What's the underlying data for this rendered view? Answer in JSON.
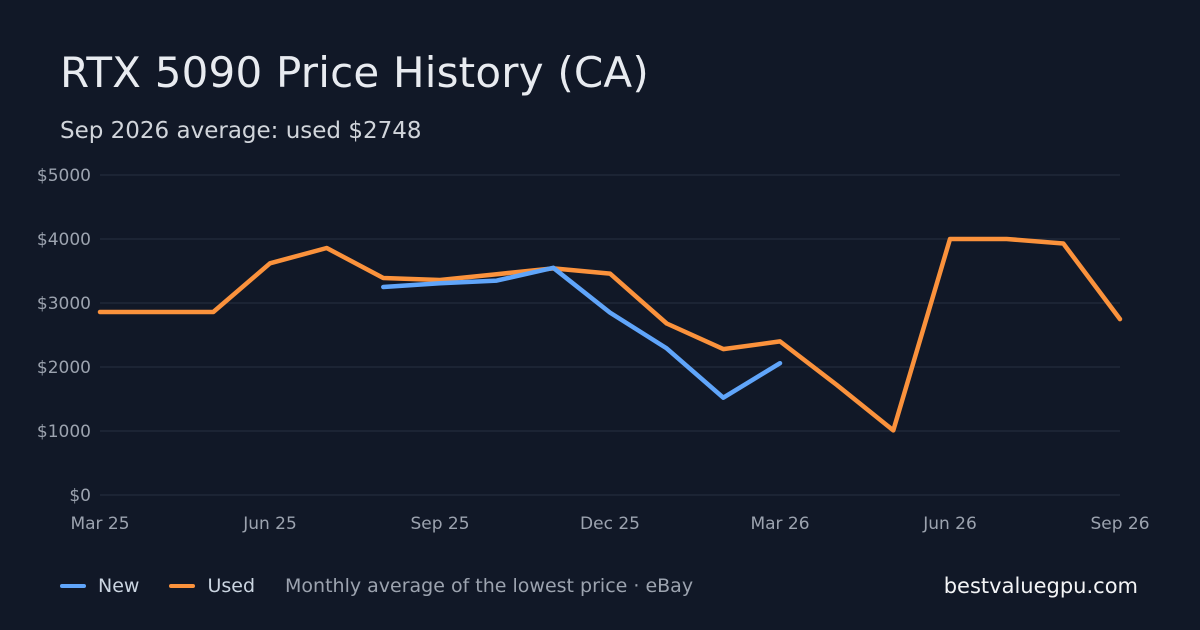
{
  "colors": {
    "background": "#111827",
    "grid": "#263042",
    "new": "#60a5fa",
    "used": "#fb923c",
    "axis_text": "#9ca3af"
  },
  "footer": {
    "note": "Monthly average of the lowest price · eBay",
    "brand": "bestvaluegpu.com"
  },
  "chart_data": {
    "type": "line",
    "title": "RTX 5090 Price History (CA)",
    "subtitle": "Sep 2026 average: used $2748",
    "xlabel": "",
    "ylabel": "",
    "x": [
      "Mar 25",
      "Apr 25",
      "May 25",
      "Jun 25",
      "Jul 25",
      "Aug 25",
      "Sep 25",
      "Oct 25",
      "Nov 25",
      "Dec 25",
      "Jan 26",
      "Feb 26",
      "Mar 26",
      "Apr 26",
      "May 26",
      "Jun 26",
      "Jul 26",
      "Aug 26",
      "Sep 26"
    ],
    "x_ticks": [
      "Mar 25",
      "Jun 25",
      "Sep 25",
      "Dec 25",
      "Mar 26",
      "Jun 26",
      "Sep 26"
    ],
    "y_ticks": [
      "$0",
      "$1000",
      "$2000",
      "$3000",
      "$4000",
      "$5000"
    ],
    "ylim": [
      0,
      5000
    ],
    "grid": true,
    "legend": "bottom-left",
    "series": [
      {
        "name": "New",
        "color": "#60a5fa",
        "values": [
          null,
          null,
          null,
          null,
          null,
          3250,
          3310,
          3350,
          3550,
          2850,
          2290,
          1520,
          2060,
          null,
          null,
          null,
          null,
          null,
          null
        ]
      },
      {
        "name": "Used",
        "color": "#fb923c",
        "values": [
          2860,
          2860,
          2860,
          3620,
          3860,
          3390,
          3360,
          3450,
          3540,
          3460,
          2680,
          2280,
          2400,
          1720,
          1010,
          4000,
          4000,
          3930,
          2748
        ]
      }
    ]
  }
}
